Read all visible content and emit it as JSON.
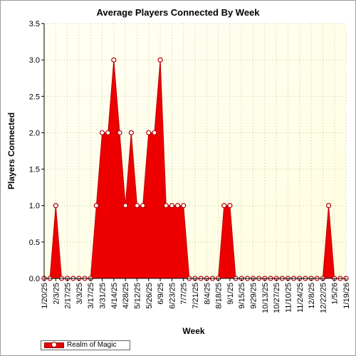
{
  "chart_data": {
    "type": "area",
    "title": "Average Players Connected By Week",
    "xlabel": "Week",
    "ylabel": "Players Connected",
    "ylim": [
      0,
      3.5
    ],
    "yticks": [
      "0.0",
      "0.5",
      "1.0",
      "1.5",
      "2.0",
      "2.5",
      "3.0",
      "3.5"
    ],
    "xtick_labels": [
      "1/20/25",
      "2/3/25",
      "2/17/25",
      "3/3/25",
      "3/17/25",
      "3/31/25",
      "4/14/25",
      "4/28/25",
      "5/12/25",
      "5/26/25",
      "6/9/25",
      "6/23/25",
      "7/7/25",
      "7/21/25",
      "8/4/25",
      "8/18/25",
      "9/1/25",
      "9/15/25",
      "9/29/25",
      "10/13/25",
      "10/27/25",
      "11/10/25",
      "11/24/25",
      "12/8/25",
      "12/22/25",
      "1/5/26",
      "1/19/26"
    ],
    "grid": true,
    "legend_position": "bottom-left",
    "fill_color": "#ee0000",
    "marker_color": "#b00000",
    "plot_background": "#fffde0",
    "series": [
      {
        "name": "Realm of Magic",
        "x": [
          "1/20/25",
          "1/27/25",
          "2/3/25",
          "2/10/25",
          "2/17/25",
          "2/24/25",
          "3/3/25",
          "3/10/25",
          "3/17/25",
          "3/24/25",
          "3/31/25",
          "4/7/25",
          "4/14/25",
          "4/21/25",
          "4/28/25",
          "5/5/25",
          "5/12/25",
          "5/19/25",
          "5/26/25",
          "6/2/25",
          "6/9/25",
          "6/16/25",
          "6/23/25",
          "6/30/25",
          "7/7/25",
          "7/14/25",
          "7/21/25",
          "7/28/25",
          "8/4/25",
          "8/11/25",
          "8/18/25",
          "8/25/25",
          "9/1/25",
          "9/8/25",
          "9/15/25",
          "9/22/25",
          "9/29/25",
          "10/6/25",
          "10/13/25",
          "10/20/25",
          "10/27/25",
          "11/3/25",
          "11/10/25",
          "11/17/25",
          "11/24/25",
          "12/1/25",
          "12/8/25",
          "12/15/25",
          "12/22/25",
          "12/29/25",
          "1/5/26",
          "1/12/26",
          "1/19/26"
        ],
        "values": [
          0,
          0,
          1,
          0,
          0,
          0,
          0,
          0,
          0,
          1,
          2,
          2,
          3,
          2,
          1,
          2,
          1,
          1,
          2,
          2,
          3,
          1,
          1,
          1,
          1,
          0,
          0,
          0,
          0,
          0,
          0,
          1,
          1,
          0,
          0,
          0,
          0,
          0,
          0,
          0,
          0,
          0,
          0,
          0,
          0,
          0,
          0,
          0,
          0,
          1,
          0,
          0,
          0
        ]
      }
    ]
  }
}
